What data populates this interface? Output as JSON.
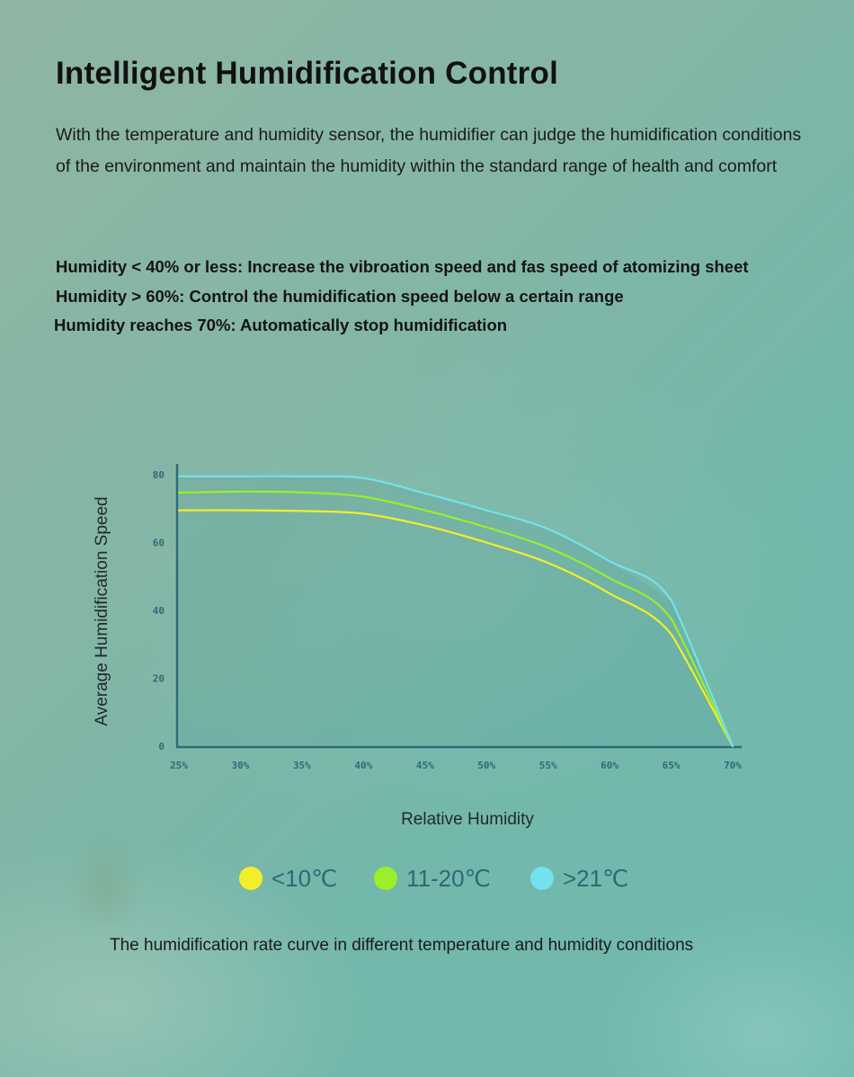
{
  "header": {
    "title": "Intelligent Humidification Control",
    "intro": "With the temperature and humidity sensor, the humidifier can judge the humidification conditions of the environment and maintain the humidity within the standard range of health and comfort"
  },
  "rules": [
    "Humidity < 40% or less: Increase the vibroation speed and fas speed of atomizing sheet",
    "Humidity > 60%: Control the humidification speed below a certain range",
    "Humidity reaches 70%: Automatically stop humidification"
  ],
  "caption": "The humidification rate curve in different temperature and humidity conditions",
  "chart_data": {
    "type": "line",
    "title": "",
    "xlabel": "Relative Humidity",
    "ylabel": "Average Humidification Speed",
    "x": [
      25,
      30,
      35,
      40,
      45,
      50,
      55,
      60,
      65,
      70
    ],
    "x_tick_labels": [
      "25%",
      "30%",
      "35%",
      "40%",
      "45%",
      "50%",
      "55%",
      "60%",
      "65%",
      "70%"
    ],
    "y_ticks": [
      0,
      20,
      40,
      60,
      80
    ],
    "xlim": [
      25,
      70
    ],
    "ylim": [
      0,
      80
    ],
    "grid": false,
    "legend_position": "bottom",
    "series": [
      {
        "name": "<10℃",
        "color": "#f2ee2a",
        "values": [
          69.5,
          69.5,
          69.3,
          68.5,
          65,
          60,
          54,
          45,
          33,
          0
        ]
      },
      {
        "name": "11-20℃",
        "color": "#9aee2a",
        "values": [
          74.7,
          75,
          74.8,
          73.5,
          69.5,
          64.5,
          58.5,
          49.5,
          37.5,
          0
        ]
      },
      {
        "name": ">21℃",
        "color": "#72e2ee",
        "values": [
          79.5,
          79.5,
          79.5,
          79,
          74.5,
          69.5,
          64,
          54.5,
          43,
          0
        ]
      }
    ]
  }
}
